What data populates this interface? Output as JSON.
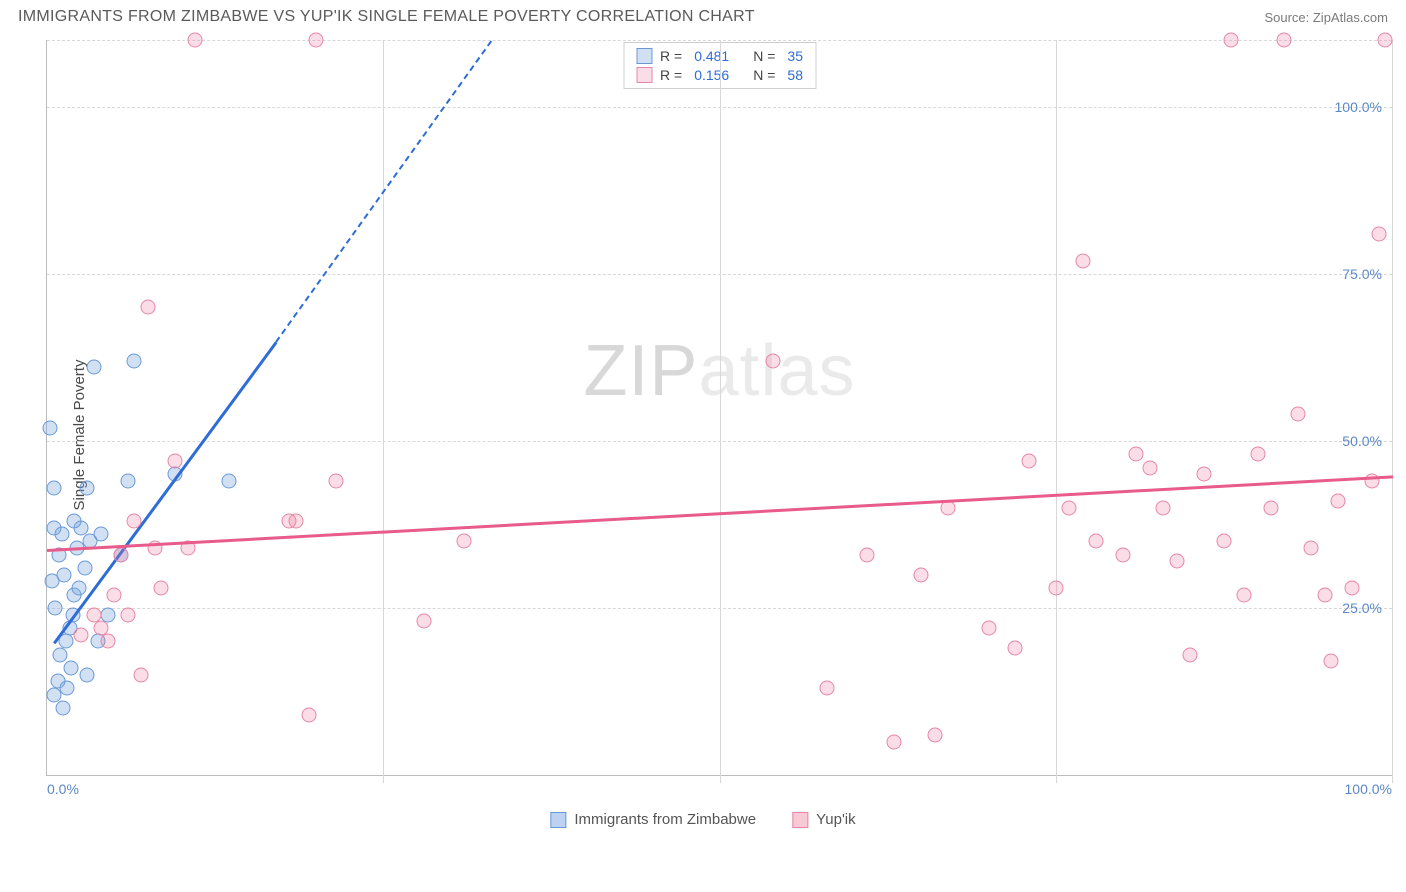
{
  "header": {
    "title": "IMMIGRANTS FROM ZIMBABWE VS YUP'IK SINGLE FEMALE POVERTY CORRELATION CHART",
    "source_prefix": "Source: ",
    "source": "ZipAtlas.com"
  },
  "ylabel": "Single Female Poverty",
  "watermark": {
    "zip": "ZIP",
    "atlas": "atlas"
  },
  "chart": {
    "type": "scatter",
    "background_color": "#ffffff",
    "grid_color": "#d8d8d8",
    "axis_color": "#bdbdbd",
    "tick_label_color": "#5b87c7",
    "xlim": [
      0,
      100
    ],
    "ylim": [
      0,
      110
    ],
    "yticks": [
      {
        "v": 25,
        "label": "25.0%"
      },
      {
        "v": 50,
        "label": "50.0%"
      },
      {
        "v": 75,
        "label": "75.0%"
      },
      {
        "v": 100,
        "label": "100.0%"
      }
    ],
    "ygrid_extra": [
      110
    ],
    "xticks": [
      {
        "v": 0,
        "label": "0.0%",
        "pos": "first"
      },
      {
        "v": 25,
        "label": ""
      },
      {
        "v": 50,
        "label": ""
      },
      {
        "v": 75,
        "label": ""
      },
      {
        "v": 100,
        "label": "100.0%",
        "pos": "last"
      }
    ],
    "series": [
      {
        "name": "Immigrants from Zimbabwe",
        "fill": "rgba(124,166,222,0.35)",
        "stroke": "#6a99d6",
        "trend_color": "#2e6cd6",
        "r_value": "0.481",
        "n_value": "35",
        "trend": {
          "x1": 0.5,
          "y1": 20,
          "x2": 17,
          "y2": 65
        },
        "trend_dash": {
          "x1": 17,
          "y1": 65,
          "x2": 33,
          "y2": 110
        },
        "points": [
          [
            0.5,
            12
          ],
          [
            0.8,
            14
          ],
          [
            1.2,
            10
          ],
          [
            1.5,
            13
          ],
          [
            1.0,
            18
          ],
          [
            1.4,
            20
          ],
          [
            1.7,
            22
          ],
          [
            0.6,
            25
          ],
          [
            1.9,
            24
          ],
          [
            2.0,
            27
          ],
          [
            1.3,
            30
          ],
          [
            2.4,
            28
          ],
          [
            0.9,
            33
          ],
          [
            2.8,
            31
          ],
          [
            1.1,
            36
          ],
          [
            3.2,
            35
          ],
          [
            0.5,
            37
          ],
          [
            2.5,
            37
          ],
          [
            2.0,
            38
          ],
          [
            4.0,
            36
          ],
          [
            0.5,
            43
          ],
          [
            3.0,
            43
          ],
          [
            6.0,
            44
          ],
          [
            9.5,
            45
          ],
          [
            13.5,
            44
          ],
          [
            0.2,
            52
          ],
          [
            3.5,
            61
          ],
          [
            6.5,
            62
          ],
          [
            1.8,
            16
          ],
          [
            4.5,
            24
          ],
          [
            5.5,
            33
          ],
          [
            3.8,
            20
          ],
          [
            0.4,
            29
          ],
          [
            3.0,
            15
          ],
          [
            2.2,
            34
          ]
        ]
      },
      {
        "name": "Yup'ik",
        "fill": "rgba(235,120,155,0.25)",
        "stroke": "#e687a4",
        "trend_color": "#e85b8a",
        "r_value": "0.156",
        "n_value": "58",
        "trend": {
          "x1": 0,
          "y1": 34,
          "x2": 100,
          "y2": 45
        },
        "points": [
          [
            2.5,
            21
          ],
          [
            3.5,
            24
          ],
          [
            4.0,
            22
          ],
          [
            4.5,
            20
          ],
          [
            5.0,
            27
          ],
          [
            6.0,
            24
          ],
          [
            7.0,
            15
          ],
          [
            8.5,
            28
          ],
          [
            5.5,
            33
          ],
          [
            8.0,
            34
          ],
          [
            6.5,
            38
          ],
          [
            10.5,
            34
          ],
          [
            18.0,
            38
          ],
          [
            18.5,
            38
          ],
          [
            19.5,
            9
          ],
          [
            11.0,
            110
          ],
          [
            20.0,
            110
          ],
          [
            7.5,
            70
          ],
          [
            9.5,
            47
          ],
          [
            28.0,
            23
          ],
          [
            31.0,
            35
          ],
          [
            21.5,
            44
          ],
          [
            54.0,
            62
          ],
          [
            58.0,
            13
          ],
          [
            61.0,
            33
          ],
          [
            63.0,
            5
          ],
          [
            65.0,
            30
          ],
          [
            66.0,
            6
          ],
          [
            67.0,
            40
          ],
          [
            70.0,
            22
          ],
          [
            72.0,
            19
          ],
          [
            75.0,
            28
          ],
          [
            76.0,
            40
          ],
          [
            77.0,
            77
          ],
          [
            78.0,
            35
          ],
          [
            80.0,
            33
          ],
          [
            81.0,
            48
          ],
          [
            82.0,
            46
          ],
          [
            83.0,
            40
          ],
          [
            84.0,
            32
          ],
          [
            85.0,
            18
          ],
          [
            86.0,
            45
          ],
          [
            88.0,
            110
          ],
          [
            87.5,
            35
          ],
          [
            89.0,
            27
          ],
          [
            91.0,
            40
          ],
          [
            92.0,
            110
          ],
          [
            93.0,
            54
          ],
          [
            94.0,
            34
          ],
          [
            95.0,
            27
          ],
          [
            96.0,
            41
          ],
          [
            95.5,
            17
          ],
          [
            97.0,
            28
          ],
          [
            98.5,
            44
          ],
          [
            99.0,
            81
          ],
          [
            99.5,
            110
          ],
          [
            90.0,
            48
          ],
          [
            73.0,
            47
          ]
        ]
      }
    ]
  },
  "legend_bottom": [
    {
      "label": "Immigrants from Zimbabwe",
      "fill": "rgba(124,166,222,0.5)",
      "stroke": "#6a99d6"
    },
    {
      "label": "Yup'ik",
      "fill": "rgba(235,120,155,0.4)",
      "stroke": "#e687a4"
    }
  ]
}
